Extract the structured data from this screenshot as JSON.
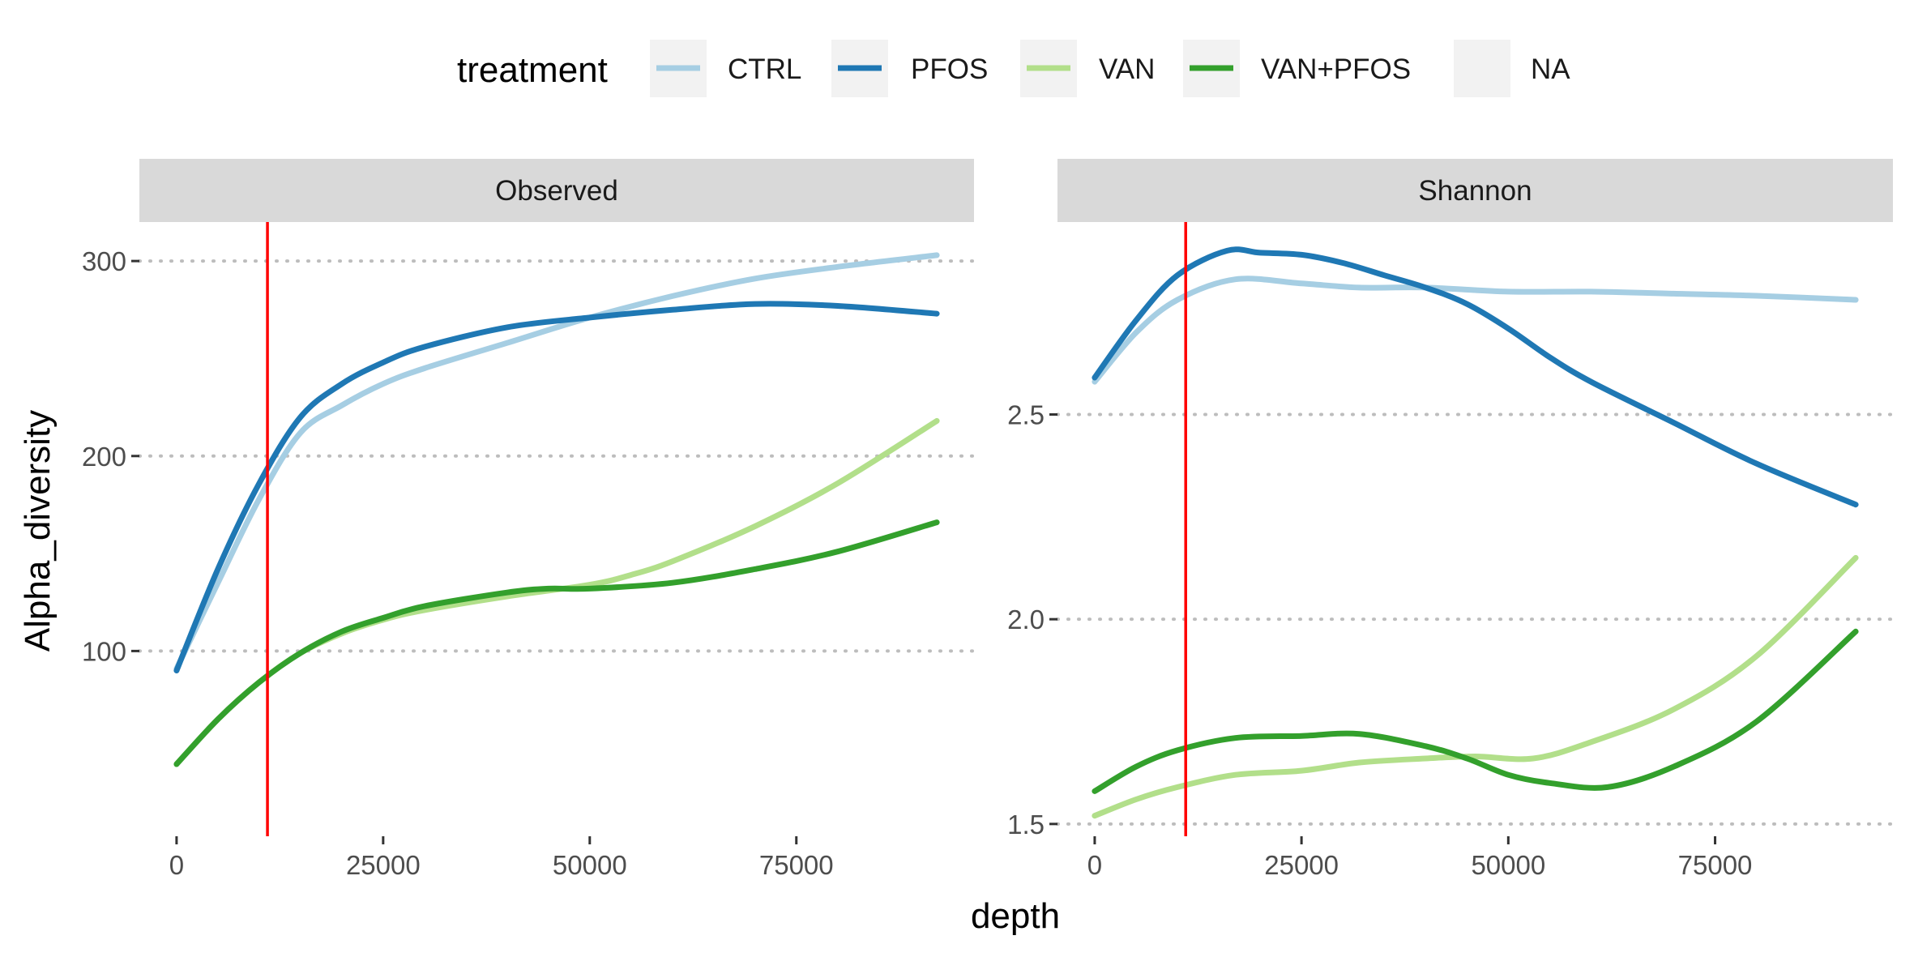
{
  "legend": {
    "title": "treatment",
    "items": [
      {
        "label": "CTRL",
        "color": "#a6cee3"
      },
      {
        "label": "PFOS",
        "color": "#1f78b4"
      },
      {
        "label": "VAN",
        "color": "#b2df8a"
      },
      {
        "label": "VAN+PFOS",
        "color": "#33a02c"
      },
      {
        "label": "NA",
        "color": null
      }
    ]
  },
  "chart_data": [
    {
      "type": "line",
      "panel": "Observed",
      "xlabel": "depth",
      "ylabel": "Alpha_diversity",
      "xlim": [
        -4500,
        96500
      ],
      "ylim": [
        5,
        320
      ],
      "x_ticks": [
        0,
        25000,
        50000,
        75000
      ],
      "x_tick_labels": [
        "0",
        "25000",
        "50000",
        "75000"
      ],
      "y_ticks": [
        100,
        200,
        300
      ],
      "y_tick_labels": [
        "100",
        "200",
        "300"
      ],
      "grid": "horizontal dotted major gridlines",
      "vline": {
        "x": 11000,
        "color": "#ff0000"
      },
      "series": [
        {
          "name": "CTRL",
          "color": "#a6cee3",
          "x": [
            0,
            5000,
            10000,
            15000,
            20000,
            25000,
            30000,
            40000,
            50000,
            60000,
            70000,
            80000,
            92000
          ],
          "y": [
            91,
            135,
            178,
            212,
            226,
            237,
            245,
            258,
            271,
            282,
            291,
            297,
            303
          ]
        },
        {
          "name": "PFOS",
          "color": "#1f78b4",
          "x": [
            0,
            5000,
            10000,
            15000,
            20000,
            25000,
            30000,
            40000,
            50000,
            60000,
            70000,
            80000,
            92000
          ],
          "y": [
            90,
            142,
            186,
            220,
            237,
            248,
            256,
            266,
            271,
            275,
            278,
            277,
            273
          ]
        },
        {
          "name": "VAN",
          "color": "#b2df8a",
          "x": [
            0,
            5000,
            10000,
            15000,
            20000,
            25000,
            30000,
            40000,
            50000,
            55000,
            60000,
            70000,
            80000,
            92000
          ],
          "y": [
            42,
            65,
            84,
            99,
            109,
            116,
            121,
            128,
            134,
            139,
            146,
            164,
            186,
            218
          ]
        },
        {
          "name": "VAN+PFOS",
          "color": "#33a02c",
          "x": [
            0,
            5000,
            10000,
            15000,
            20000,
            25000,
            30000,
            40000,
            45000,
            50000,
            60000,
            70000,
            80000,
            92000
          ],
          "y": [
            42,
            65,
            84,
            99,
            110,
            117,
            123,
            130,
            132,
            132,
            135,
            142,
            151,
            166
          ]
        }
      ]
    },
    {
      "type": "line",
      "panel": "Shannon",
      "xlabel": "depth",
      "ylabel": "Alpha_diversity",
      "xlim": [
        -4500,
        96500
      ],
      "ylim": [
        1.47,
        2.97
      ],
      "x_ticks": [
        0,
        25000,
        50000,
        75000
      ],
      "x_tick_labels": [
        "0",
        "25000",
        "50000",
        "75000"
      ],
      "y_ticks": [
        1.5,
        2.0,
        2.5
      ],
      "y_tick_labels": [
        "1.5",
        "2.0",
        "2.5"
      ],
      "grid": "horizontal dotted major gridlines",
      "vline": {
        "x": 11000,
        "color": "#ff0000"
      },
      "series": [
        {
          "name": "CTRL",
          "color": "#a6cee3",
          "x": [
            0,
            5000,
            10000,
            17000,
            25000,
            32000,
            40000,
            50000,
            60000,
            70000,
            80000,
            92000
          ],
          "y": [
            2.58,
            2.7,
            2.78,
            2.83,
            2.82,
            2.81,
            2.81,
            2.8,
            2.8,
            2.795,
            2.79,
            2.78
          ]
        },
        {
          "name": "PFOS",
          "color": "#1f78b4",
          "x": [
            0,
            5000,
            10000,
            16000,
            20000,
            25000,
            30000,
            35000,
            40000,
            45000,
            50000,
            55000,
            60000,
            70000,
            80000,
            92000
          ],
          "y": [
            2.59,
            2.73,
            2.84,
            2.9,
            2.895,
            2.89,
            2.87,
            2.84,
            2.81,
            2.77,
            2.71,
            2.64,
            2.58,
            2.48,
            2.38,
            2.28
          ]
        },
        {
          "name": "VAN",
          "color": "#b2df8a",
          "x": [
            0,
            5000,
            10000,
            17000,
            25000,
            32000,
            40000,
            46000,
            53000,
            60000,
            70000,
            80000,
            92000
          ],
          "y": [
            1.52,
            1.56,
            1.59,
            1.62,
            1.63,
            1.65,
            1.66,
            1.665,
            1.66,
            1.7,
            1.78,
            1.91,
            2.15
          ]
        },
        {
          "name": "VAN+PFOS",
          "color": "#33a02c",
          "x": [
            0,
            5000,
            10000,
            17000,
            25000,
            32000,
            40000,
            45000,
            50000,
            55000,
            62000,
            70000,
            80000,
            92000
          ],
          "y": [
            1.58,
            1.64,
            1.68,
            1.71,
            1.715,
            1.72,
            1.69,
            1.66,
            1.62,
            1.6,
            1.59,
            1.64,
            1.75,
            1.97
          ]
        }
      ]
    }
  ]
}
